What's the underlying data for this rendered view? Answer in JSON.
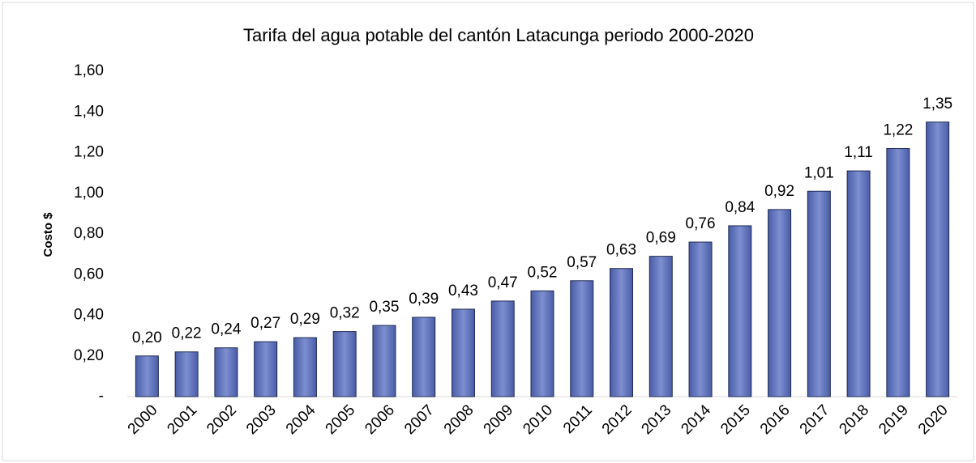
{
  "chart_data": {
    "type": "bar",
    "title": "Tarifa del agua potable del cantón Latacunga periodo 2000-2020",
    "y_label": "Costo $",
    "categories": [
      "2000",
      "2001",
      "2002",
      "2003",
      "2004",
      "2005",
      "2006",
      "2007",
      "2008",
      "2009",
      "2010",
      "2011",
      "2012",
      "2013",
      "2014",
      "2015",
      "2016",
      "2017",
      "2018",
      "2019",
      "2020"
    ],
    "values": [
      0.2,
      0.22,
      0.24,
      0.27,
      0.29,
      0.32,
      0.35,
      0.39,
      0.43,
      0.47,
      0.52,
      0.57,
      0.63,
      0.69,
      0.76,
      0.84,
      0.92,
      1.01,
      1.11,
      1.22,
      1.35
    ],
    "value_labels": [
      "0,20",
      "0,22",
      "0,24",
      "0,27",
      "0,29",
      "0,32",
      "0,35",
      "0,39",
      "0,43",
      "0,47",
      "0,52",
      "0,57",
      "0,63",
      "0,69",
      "0,76",
      "0,84",
      "0,92",
      "1,01",
      "1,11",
      "1,22",
      "1,35"
    ],
    "color": "#4a5ca6",
    "ylim": [
      0,
      1.6
    ],
    "yticks": [
      {
        "value": 0,
        "label": "-"
      },
      {
        "value": 0.2,
        "label": "0,20"
      },
      {
        "value": 0.4,
        "label": "0,40"
      },
      {
        "value": 0.6,
        "label": "0,60"
      },
      {
        "value": 0.8,
        "label": "0,80"
      },
      {
        "value": 1.0,
        "label": "1,00"
      },
      {
        "value": 1.2,
        "label": "1,20"
      },
      {
        "value": 1.4,
        "label": "1,40"
      },
      {
        "value": 1.6,
        "label": "1,60"
      }
    ],
    "grid": false
  }
}
